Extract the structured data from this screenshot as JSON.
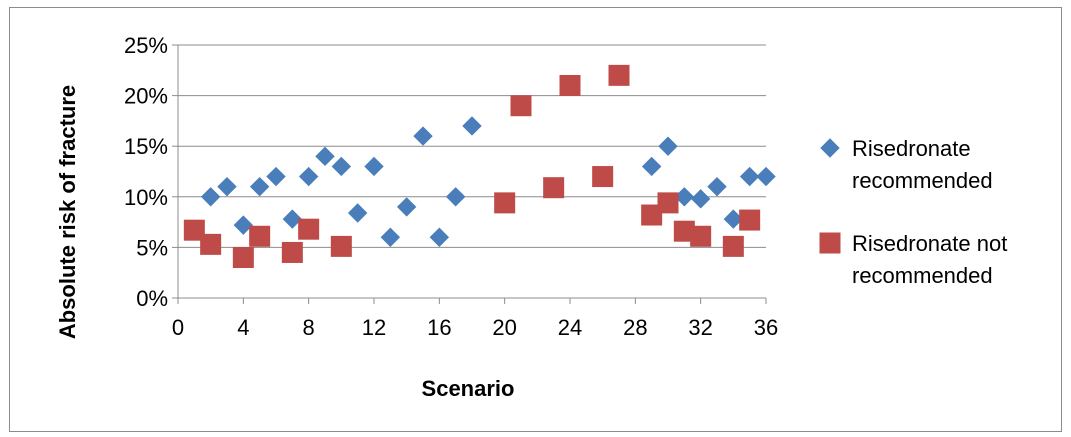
{
  "chart_data": {
    "type": "scatter",
    "xlabel": "Scenario",
    "ylabel": "Absolute risk of fracture",
    "xlim": [
      0,
      36
    ],
    "ylim": [
      0,
      0.25
    ],
    "xticks": [
      0,
      4,
      8,
      12,
      16,
      20,
      24,
      28,
      32,
      36
    ],
    "xtick_labels": [
      "0",
      "4",
      "8",
      "12",
      "16",
      "20",
      "24",
      "28",
      "32",
      "36"
    ],
    "yticks": [
      0,
      0.05,
      0.1,
      0.15,
      0.2,
      0.25
    ],
    "ytick_labels": [
      "0%",
      "5%",
      "10%",
      "15%",
      "20%",
      "25%"
    ],
    "grid": "horizontal",
    "legend_position": "right",
    "series": [
      {
        "name": "Risedronate recommended",
        "legend_lines": [
          "Risedronate",
          "recommended"
        ],
        "color": "#4a7ebb",
        "marker": "diamond",
        "points": [
          [
            2,
            0.1
          ],
          [
            3,
            0.11
          ],
          [
            4,
            0.072
          ],
          [
            5,
            0.11
          ],
          [
            6,
            0.12
          ],
          [
            7,
            0.078
          ],
          [
            8,
            0.12
          ],
          [
            9,
            0.14
          ],
          [
            10,
            0.13
          ],
          [
            11,
            0.084
          ],
          [
            12,
            0.13
          ],
          [
            13,
            0.06
          ],
          [
            14,
            0.09
          ],
          [
            15,
            0.16
          ],
          [
            16,
            0.06
          ],
          [
            17,
            0.1
          ],
          [
            18,
            0.17
          ],
          [
            29,
            0.13
          ],
          [
            30,
            0.15
          ],
          [
            31,
            0.1
          ],
          [
            32,
            0.098
          ],
          [
            33,
            0.11
          ],
          [
            34,
            0.078
          ],
          [
            35,
            0.12
          ],
          [
            36,
            0.12
          ]
        ]
      },
      {
        "name": "Risedronate not recommended",
        "legend_lines": [
          "Risedronate not",
          "recommended"
        ],
        "color": "#be4b48",
        "marker": "square",
        "points": [
          [
            1,
            0.067
          ],
          [
            2,
            0.053
          ],
          [
            4,
            0.04
          ],
          [
            5,
            0.061
          ],
          [
            7,
            0.045
          ],
          [
            8,
            0.068
          ],
          [
            10,
            0.051
          ],
          [
            20,
            0.094
          ],
          [
            21,
            0.19
          ],
          [
            23,
            0.109
          ],
          [
            24,
            0.21
          ],
          [
            26,
            0.12
          ],
          [
            27,
            0.22
          ],
          [
            29,
            0.082
          ],
          [
            30,
            0.094
          ],
          [
            31,
            0.066
          ],
          [
            32,
            0.061
          ],
          [
            34,
            0.051
          ],
          [
            35,
            0.077
          ]
        ]
      }
    ]
  }
}
